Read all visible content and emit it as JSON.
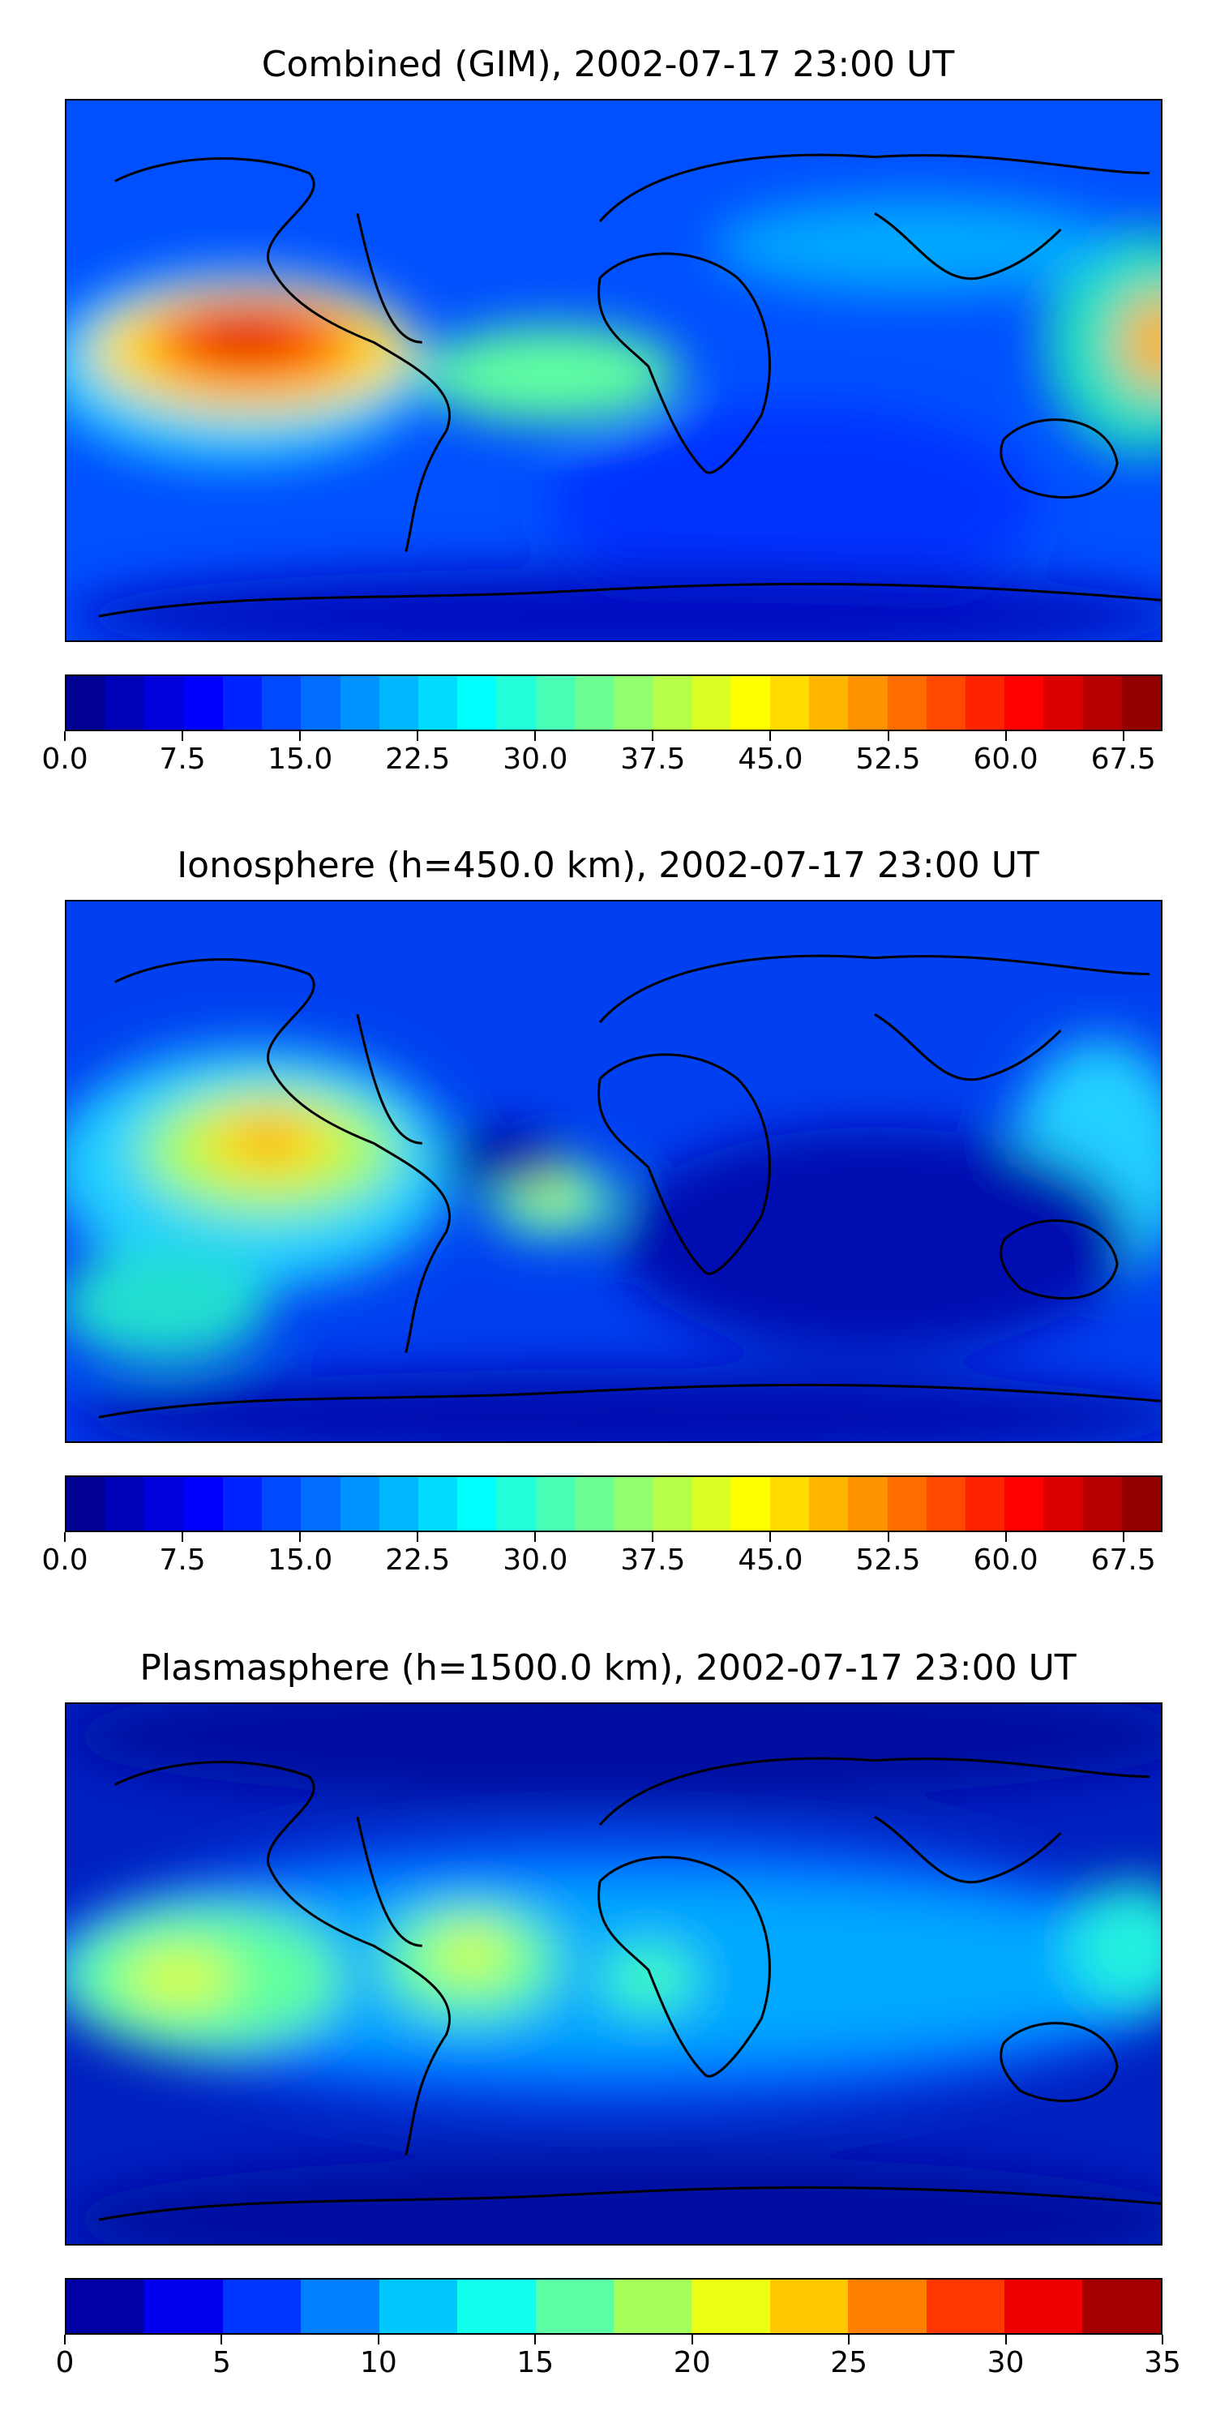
{
  "panels": [
    {
      "title": "Combined (GIM), 2002-07-17 23:00 UT",
      "colorbar": {
        "ticks": [
          "0.0",
          "7.5",
          "15.0",
          "22.5",
          "30.0",
          "37.5",
          "45.0",
          "52.5",
          "60.0",
          "67.5"
        ],
        "min": 0,
        "max": 70,
        "step": 2.5
      }
    },
    {
      "title": "Ionosphere  (h=450.0 km), 2002-07-17 23:00 UT",
      "colorbar": {
        "ticks": [
          "0.0",
          "7.5",
          "15.0",
          "22.5",
          "30.0",
          "37.5",
          "45.0",
          "52.5",
          "60.0",
          "67.5"
        ],
        "min": 0,
        "max": 70,
        "step": 2.5
      }
    },
    {
      "title": "Plasmasphere (h=1500.0 km), 2002-07-17 23:00 UT",
      "colorbar": {
        "ticks": [
          "0",
          "5",
          "10",
          "15",
          "20",
          "25",
          "30",
          "35"
        ],
        "min": 0,
        "max": 35,
        "step": 2.5
      }
    }
  ],
  "colormap": "jet"
}
